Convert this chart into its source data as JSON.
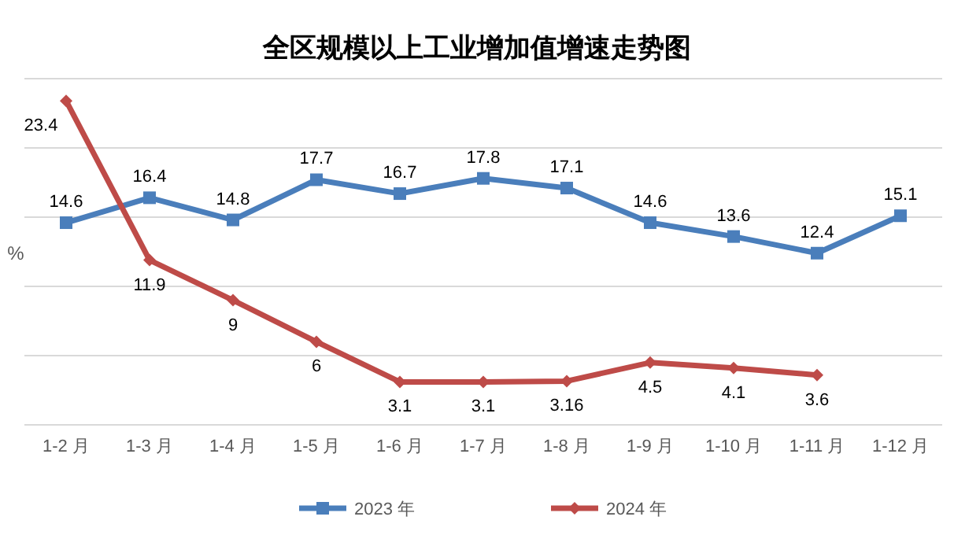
{
  "chart_data": {
    "type": "line",
    "title": "全区规模以上工业增加值增速走势图",
    "ylabel": "%",
    "categories": [
      "1-2 月",
      "1-3 月",
      "1-4 月",
      "1-5 月",
      "1-6 月",
      "1-7 月",
      "1-8 月",
      "1-9 月",
      "1-10 月",
      "1-11 月",
      "1-12 月"
    ],
    "series": [
      {
        "name": "2023 年",
        "color": "#4a7ebb",
        "marker": "square",
        "values": [
          14.6,
          16.4,
          14.8,
          17.7,
          16.7,
          17.8,
          17.1,
          14.6,
          13.6,
          12.4,
          15.1
        ]
      },
      {
        "name": "2024 年",
        "color": "#be4b48",
        "marker": "diamond",
        "values": [
          23.4,
          11.9,
          9,
          6,
          3.1,
          3.1,
          3.16,
          4.5,
          4.1,
          3.6,
          null
        ]
      }
    ],
    "ylim": [
      0,
      25
    ],
    "yticks": [
      {
        "value": 0,
        "label": null
      },
      {
        "value": 5,
        "label": null
      },
      {
        "value": 10,
        "label": null
      },
      {
        "value": 15,
        "label": null
      },
      {
        "value": 20,
        "label": null
      },
      {
        "value": 25,
        "label": null
      }
    ],
    "grid": "y",
    "data_labels": true,
    "legend": "bottom",
    "tick_labels": "x",
    "line_style": "solid"
  }
}
